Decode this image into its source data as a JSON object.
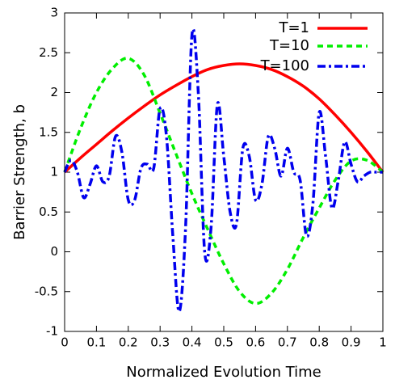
{
  "chart_data": {
    "type": "line",
    "xlabel": "Normalized Evolution Time",
    "ylabel": "Barrier Strength, b",
    "xlim": [
      0,
      1
    ],
    "xticks": [
      0,
      0.1,
      0.2,
      0.3,
      0.4,
      0.5,
      0.6,
      0.7,
      0.8,
      0.9,
      1
    ],
    "ylim": [
      -1,
      3
    ],
    "yticks": [
      -1,
      -0.5,
      0,
      0.5,
      1,
      1.5,
      2,
      2.5,
      3
    ],
    "legend": "top-right",
    "series": [
      {
        "name": "T=1",
        "color": "#ff0000",
        "dash": "solid",
        "x": [
          0,
          0.05,
          0.1,
          0.15,
          0.2,
          0.25,
          0.3,
          0.35,
          0.4,
          0.45,
          0.5,
          0.55,
          0.6,
          0.65,
          0.7,
          0.75,
          0.8,
          0.85,
          0.9,
          0.95,
          1
        ],
        "values": [
          1,
          1.18,
          1.35,
          1.52,
          1.68,
          1.83,
          1.97,
          2.09,
          2.2,
          2.29,
          2.34,
          2.36,
          2.34,
          2.29,
          2.2,
          2.08,
          1.92,
          1.72,
          1.5,
          1.26,
          1.0
        ]
      },
      {
        "name": "T=10",
        "color": "#00ee00",
        "dash": "dash",
        "x": [
          0,
          0.05,
          0.1,
          0.15,
          0.2,
          0.25,
          0.3,
          0.35,
          0.4,
          0.45,
          0.5,
          0.55,
          0.6,
          0.65,
          0.7,
          0.75,
          0.8,
          0.85,
          0.9,
          0.95,
          1
        ],
        "values": [
          1,
          1.55,
          2.0,
          2.3,
          2.43,
          2.22,
          1.74,
          1.23,
          0.73,
          0.28,
          -0.15,
          -0.5,
          -0.65,
          -0.52,
          -0.22,
          0.18,
          0.55,
          0.9,
          1.14,
          1.15,
          1.0
        ]
      },
      {
        "name": "T=100",
        "color": "#0000ee",
        "dash": "dashdot",
        "x": [
          0,
          0.02,
          0.04,
          0.06,
          0.08,
          0.1,
          0.12,
          0.14,
          0.16,
          0.18,
          0.2,
          0.22,
          0.24,
          0.26,
          0.28,
          0.3,
          0.32,
          0.34,
          0.36,
          0.38,
          0.4,
          0.42,
          0.44,
          0.46,
          0.48,
          0.5,
          0.52,
          0.54,
          0.56,
          0.58,
          0.6,
          0.62,
          0.64,
          0.66,
          0.68,
          0.7,
          0.72,
          0.74,
          0.76,
          0.78,
          0.8,
          0.82,
          0.84,
          0.86,
          0.88,
          0.9,
          0.92,
          0.94,
          0.96,
          0.98,
          1
        ],
        "values": [
          1.0,
          1.15,
          1.0,
          0.68,
          0.85,
          1.08,
          0.88,
          0.95,
          1.45,
          1.25,
          0.65,
          0.65,
          1.05,
          1.1,
          1.05,
          1.8,
          1.45,
          0.2,
          -0.75,
          0.3,
          2.72,
          2.0,
          0.0,
          0.3,
          1.85,
          1.2,
          0.5,
          0.35,
          1.3,
          1.2,
          0.65,
          0.85,
          1.45,
          1.3,
          0.95,
          1.3,
          1.0,
          0.9,
          0.2,
          0.6,
          1.75,
          1.2,
          0.55,
          0.9,
          1.38,
          1.1,
          0.88,
          0.95,
          1.0,
          1.0,
          1.0
        ]
      }
    ]
  }
}
